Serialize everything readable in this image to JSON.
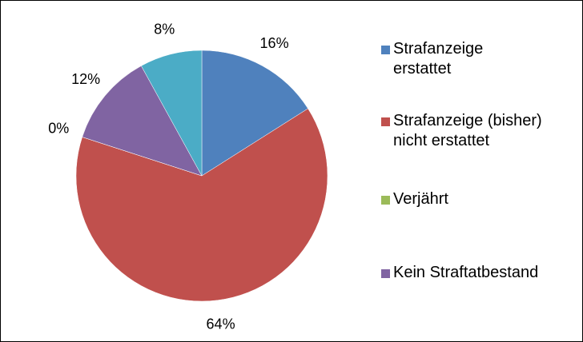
{
  "chart_data": {
    "type": "pie",
    "categories": [
      "Strafanzeige erstattet",
      "Strafanzeige (bisher) nicht erstattet",
      "Verjährt",
      "Kein Straftatbestand",
      null
    ],
    "values": [
      16,
      64,
      0,
      12,
      8
    ],
    "value_labels": [
      "16%",
      "64%",
      "0%",
      "12%",
      "8%"
    ],
    "colors": [
      "#4f81bd",
      "#c0504d",
      "#9bbb59",
      "#8064a2",
      "#4bacc6"
    ],
    "legend": "right"
  }
}
